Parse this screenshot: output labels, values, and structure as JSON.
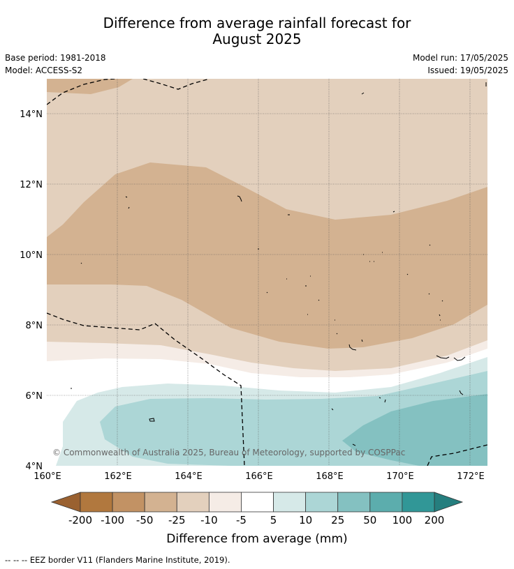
{
  "title": {
    "line1": "Difference from average rainfall forecast for",
    "line2": "August 2025"
  },
  "meta_left": {
    "base_period": "Base period: 1981-2018",
    "model": "Model: ACCESS-S2"
  },
  "meta_right": {
    "model_run": "Model run: 17/05/2025",
    "issued": "Issued: 19/05/2025"
  },
  "map": {
    "lat_labels": [
      "14°N",
      "12°N",
      "10°N",
      "8°N",
      "6°N",
      "4°N"
    ],
    "lon_labels": [
      "160°E",
      "162°E",
      "164°E",
      "166°E",
      "168°E",
      "170°E",
      "172°E"
    ],
    "copyright": "© Commonwealth of Australia 2025, Bureau of Meteorology, supported by COSPPac"
  },
  "colorbar": {
    "labels": [
      "-200",
      "-100",
      "-50",
      "-25",
      "-10",
      "-5",
      "5",
      "10",
      "25",
      "50",
      "100",
      "200"
    ],
    "colors": [
      "#9a6130",
      "#b1783e",
      "#c29264",
      "#d3b291",
      "#e3d0bd",
      "#f5ece6",
      "#ffffff",
      "#d6e9e8",
      "#acd6d6",
      "#84c1c1",
      "#5cadad",
      "#319797",
      "#257e7e"
    ],
    "title": "Difference from average (mm)"
  },
  "footer": "--  --  -- EEZ border V11 (Flanders Marine Institute, 2019)."
}
